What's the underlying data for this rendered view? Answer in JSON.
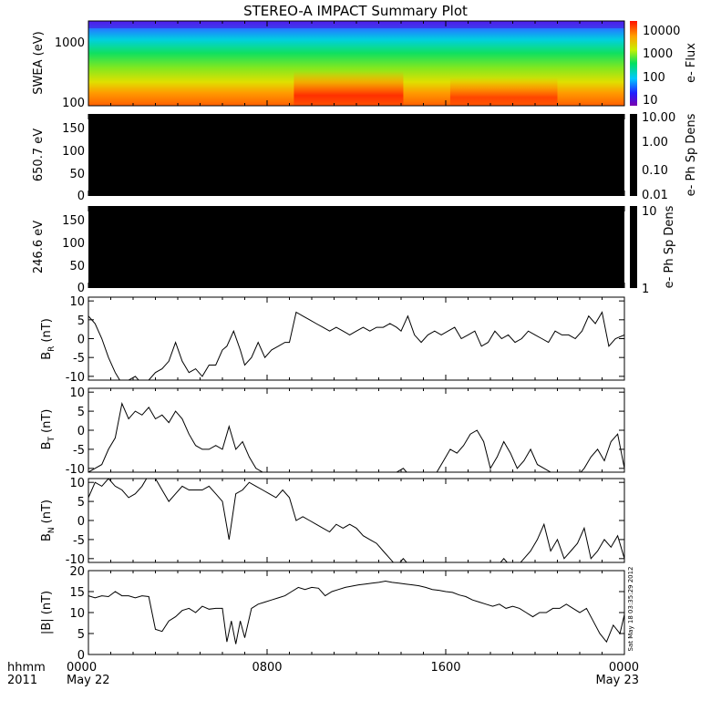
{
  "title": "STEREO-A IMPACT Summary Plot",
  "time_axis": {
    "label_row1": "hhmm",
    "label_row2": "2011",
    "ticks": [
      {
        "hour": 0,
        "time": "0000",
        "date": "May 22"
      },
      {
        "hour": 8,
        "time": "0800",
        "date": ""
      },
      {
        "hour": 16,
        "time": "1600",
        "date": ""
      },
      {
        "hour": 24,
        "time": "0000",
        "date": "May 23"
      }
    ],
    "range_hours": [
      0,
      24
    ]
  },
  "timestamp": "Sat May 18 03:35:29 2012",
  "colors": {
    "line": "#000000",
    "background": "#ffffff",
    "panel_fill": "#000000"
  },
  "chart_data": [
    {
      "type": "heatmap",
      "ylabel": "SWEA (eV)",
      "yscale": "log",
      "ylim": [
        100,
        2000
      ],
      "yticks": [
        "100",
        "1000"
      ],
      "colorbar": {
        "label": "e- Flux",
        "scale": "log",
        "range": [
          5,
          30000
        ],
        "ticks": [
          "10",
          "100",
          "1000",
          "10000"
        ]
      },
      "flux_bands": [
        {
          "energy_range": "1500-2000 eV",
          "level": "10-30"
        },
        {
          "energy_range": "800-1500 eV",
          "level": "30-300"
        },
        {
          "energy_range": "300-800 eV",
          "level": "300-3000"
        },
        {
          "energy_range": "100-300 eV",
          "level": "1000-30000"
        }
      ],
      "enhanced_periods_hours": [
        [
          9.2,
          14.1
        ],
        [
          16.2,
          21.0
        ]
      ]
    },
    {
      "type": "heatmap",
      "ylabel": "650.7 eV",
      "ylim": [
        0,
        180
      ],
      "yticks": [
        "0",
        "50",
        "100",
        "150"
      ],
      "colorbar": {
        "label": "e- Ph Sp Dens",
        "scale": "log",
        "ticks": [
          "0.01",
          "0.10",
          "1.00",
          "10.00"
        ]
      },
      "fill": "#000000"
    },
    {
      "type": "heatmap",
      "ylabel": "246.6 eV",
      "ylim": [
        0,
        180
      ],
      "yticks": [
        "0",
        "50",
        "100",
        "150"
      ],
      "colorbar": {
        "label": "e- Ph Sp Dens",
        "scale": "log",
        "ticks": [
          "1",
          "10"
        ]
      },
      "fill": "#000000"
    },
    {
      "type": "line",
      "ylabel": "B_R (nT)",
      "ylabel_main": "B",
      "ylabel_sub": "R",
      "ylabel_unit": "(nT)",
      "ylim": [
        -11,
        11
      ],
      "yticks": [
        "-10",
        "-5",
        "0",
        "5",
        "10"
      ],
      "x": [
        0,
        0.3,
        0.6,
        0.9,
        1.2,
        1.5,
        1.8,
        2.1,
        2.4,
        2.7,
        3.0,
        3.3,
        3.6,
        3.9,
        4.2,
        4.5,
        4.8,
        5.1,
        5.4,
        5.7,
        6.0,
        6.2,
        6.5,
        6.8,
        7.0,
        7.3,
        7.6,
        7.9,
        8.2,
        8.5,
        8.8,
        9.0,
        9.3,
        9.6,
        9.9,
        10.2,
        10.5,
        10.8,
        11.1,
        11.4,
        11.7,
        12.0,
        12.3,
        12.6,
        12.9,
        13.2,
        13.5,
        13.8,
        14.0,
        14.3,
        14.6,
        14.9,
        15.2,
        15.5,
        15.8,
        16.1,
        16.4,
        16.7,
        17.0,
        17.3,
        17.6,
        17.9,
        18.2,
        18.5,
        18.8,
        19.1,
        19.4,
        19.7,
        20.0,
        20.3,
        20.6,
        20.9,
        21.2,
        21.5,
        21.8,
        22.1,
        22.4,
        22.7,
        23.0,
        23.3,
        23.6,
        24.0
      ],
      "y": [
        6,
        4,
        0,
        -5,
        -9,
        -12,
        -11,
        -10,
        -12,
        -11,
        -9,
        -8,
        -6,
        -1,
        -6,
        -9,
        -8,
        -10,
        -7,
        -7,
        -3,
        -2,
        2,
        -3,
        -7,
        -5,
        -1,
        -5,
        -3,
        -2,
        -1,
        -1,
        7,
        6,
        5,
        4,
        3,
        2,
        3,
        2,
        1,
        2,
        3,
        2,
        3,
        3,
        4,
        3,
        2,
        6,
        1,
        -1,
        1,
        2,
        1,
        2,
        3,
        0,
        1,
        2,
        -2,
        -1,
        2,
        0,
        1,
        -1,
        0,
        2,
        1,
        0,
        -1,
        2,
        1,
        1,
        0,
        2,
        6,
        4,
        7,
        -2,
        0,
        1
      ]
    },
    {
      "type": "line",
      "ylabel": "B_T (nT)",
      "ylabel_main": "B",
      "ylabel_sub": "T",
      "ylabel_unit": "(nT)",
      "ylim": [
        -11,
        11
      ],
      "yticks": [
        "-10",
        "-5",
        "0",
        "5",
        "10"
      ],
      "x": [
        0,
        0.3,
        0.6,
        0.9,
        1.2,
        1.5,
        1.8,
        2.1,
        2.4,
        2.7,
        3.0,
        3.3,
        3.6,
        3.9,
        4.2,
        4.5,
        4.8,
        5.1,
        5.4,
        5.7,
        6.0,
        6.3,
        6.6,
        6.9,
        7.2,
        7.5,
        7.8,
        8.1,
        8.4,
        8.7,
        9.0,
        9.3,
        9.6,
        9.9,
        10.2,
        10.5,
        10.8,
        11.1,
        11.4,
        11.7,
        12.0,
        12.3,
        12.6,
        12.9,
        13.2,
        13.5,
        13.8,
        14.1,
        14.4,
        14.7,
        15.0,
        15.3,
        15.6,
        15.9,
        16.2,
        16.5,
        16.8,
        17.1,
        17.4,
        17.7,
        18.0,
        18.3,
        18.6,
        18.9,
        19.2,
        19.5,
        19.8,
        20.1,
        20.4,
        20.7,
        21.0,
        21.3,
        21.6,
        21.9,
        22.2,
        22.5,
        22.8,
        23.1,
        23.4,
        23.7,
        24.0
      ],
      "y": [
        -11,
        -10,
        -9,
        -5,
        -2,
        7,
        3,
        5,
        4,
        6,
        3,
        4,
        2,
        5,
        3,
        -1,
        -4,
        -5,
        -5,
        -4,
        -5,
        1,
        -5,
        -3,
        -7,
        -10,
        -11,
        -11,
        -12,
        -12,
        -12,
        -12,
        -12,
        -12,
        -12,
        -12,
        -12,
        -12,
        -12,
        -12,
        -12,
        -12,
        -12,
        -12,
        -12,
        -12,
        -11,
        -10,
        -12,
        -11,
        -12,
        -12,
        -11,
        -8,
        -5,
        -6,
        -4,
        -1,
        0,
        -3,
        -10,
        -7,
        -3,
        -6,
        -10,
        -8,
        -5,
        -9,
        -10,
        -11,
        -12,
        -12,
        -11,
        -12,
        -10,
        -7,
        -5,
        -8,
        -3,
        -1,
        -10
      ]
    },
    {
      "type": "line",
      "ylabel": "B_N (nT)",
      "ylabel_main": "B",
      "ylabel_sub": "N",
      "ylabel_unit": "(nT)",
      "ylim": [
        -11,
        11
      ],
      "yticks": [
        "-10",
        "-5",
        "0",
        "5",
        "10"
      ],
      "x": [
        0,
        0.3,
        0.6,
        0.9,
        1.2,
        1.5,
        1.8,
        2.1,
        2.4,
        2.7,
        3.0,
        3.3,
        3.6,
        3.9,
        4.2,
        4.5,
        4.8,
        5.1,
        5.4,
        5.7,
        6.0,
        6.3,
        6.6,
        6.9,
        7.2,
        7.5,
        7.8,
        8.1,
        8.4,
        8.7,
        9.0,
        9.3,
        9.6,
        9.9,
        10.2,
        10.5,
        10.8,
        11.1,
        11.4,
        11.7,
        12.0,
        12.3,
        12.6,
        12.9,
        13.2,
        13.5,
        13.8,
        14.1,
        14.4,
        14.7,
        15.0,
        15.3,
        15.6,
        15.9,
        16.2,
        16.5,
        16.8,
        17.1,
        17.4,
        17.7,
        18.0,
        18.3,
        18.6,
        18.9,
        19.2,
        19.5,
        19.8,
        20.1,
        20.4,
        20.7,
        21.0,
        21.3,
        21.6,
        21.9,
        22.2,
        22.5,
        22.8,
        23.1,
        23.4,
        23.7,
        24.0
      ],
      "y": [
        6,
        10,
        9,
        11,
        9,
        8,
        6,
        7,
        9,
        12,
        11,
        8,
        5,
        7,
        9,
        8,
        8,
        8,
        9,
        7,
        5,
        -5,
        7,
        8,
        10,
        9,
        8,
        7,
        6,
        8,
        6,
        0,
        1,
        0,
        -1,
        -2,
        -3,
        -1,
        -2,
        -1,
        -2,
        -4,
        -5,
        -6,
        -8,
        -10,
        -12,
        -10,
        -12,
        -12,
        -12,
        -12,
        -12,
        -12,
        -12,
        -12,
        -12,
        -12,
        -12,
        -12,
        -12,
        -12,
        -10,
        -12,
        -12,
        -10,
        -8,
        -5,
        -1,
        -8,
        -5,
        -10,
        -8,
        -6,
        -2,
        -10,
        -8,
        -5,
        -7,
        -4,
        -10
      ]
    },
    {
      "type": "line",
      "ylabel": "|B| (nT)",
      "ylim": [
        0,
        20
      ],
      "yticks": [
        "0",
        "5",
        "10",
        "15",
        "20"
      ],
      "x": [
        0,
        0.3,
        0.6,
        0.9,
        1.2,
        1.5,
        1.8,
        2.1,
        2.4,
        2.7,
        3.0,
        3.3,
        3.6,
        3.9,
        4.2,
        4.5,
        4.8,
        5.1,
        5.4,
        5.7,
        6.0,
        6.2,
        6.4,
        6.6,
        6.8,
        7.0,
        7.3,
        7.6,
        7.9,
        8.2,
        8.5,
        8.8,
        9.1,
        9.4,
        9.7,
        10.0,
        10.3,
        10.6,
        10.9,
        11.2,
        11.5,
        11.8,
        12.1,
        12.4,
        12.7,
        13.0,
        13.3,
        13.6,
        13.9,
        14.2,
        14.5,
        14.8,
        15.1,
        15.4,
        15.7,
        16.0,
        16.3,
        16.6,
        16.9,
        17.2,
        17.5,
        17.8,
        18.1,
        18.4,
        18.7,
        19.0,
        19.3,
        19.6,
        19.9,
        20.2,
        20.5,
        20.8,
        21.1,
        21.4,
        21.7,
        22.0,
        22.3,
        22.6,
        22.9,
        23.2,
        23.5,
        23.8,
        24.0
      ],
      "y": [
        14,
        13.5,
        14,
        13.8,
        15,
        14,
        14,
        13.5,
        14,
        13.8,
        6,
        5.5,
        8,
        9,
        10.5,
        11,
        10,
        11.5,
        10.8,
        11,
        11,
        3,
        8,
        2.5,
        8,
        4,
        11,
        12,
        12.5,
        13,
        13.5,
        14,
        15,
        16,
        15.5,
        16,
        15.8,
        14,
        15,
        15.5,
        16,
        16.3,
        16.6,
        16.8,
        17,
        17.2,
        17.5,
        17.2,
        17,
        16.8,
        16.6,
        16.4,
        16,
        15.5,
        15.3,
        15,
        14.8,
        14.2,
        13.8,
        13,
        12.5,
        12,
        11.5,
        12,
        11,
        11.5,
        11,
        10,
        9,
        10,
        10,
        11,
        11,
        12,
        11,
        10,
        11,
        8,
        5,
        3,
        7,
        5,
        9.5
      ]
    }
  ]
}
